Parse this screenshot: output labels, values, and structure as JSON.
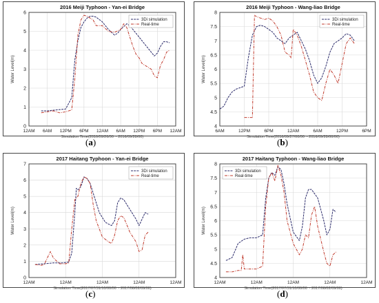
{
  "colors": {
    "sim": "#2a2a6a",
    "real": "#c0392b",
    "grid": "#d8d8d8",
    "axis": "#333333"
  },
  "chart_data": [
    {
      "id": "a",
      "type": "line",
      "caption": "a",
      "title": "2016 Meiji Typhoon - Yan-ei Bridge",
      "ylabel": "Water Level(m)",
      "xlabel": "Simulation Time(2016/09/26/00 ~ 2016/09/28/00)",
      "ylim": [
        0,
        6
      ],
      "yticks": [
        0,
        1,
        2,
        3,
        4,
        5,
        6
      ],
      "xlim": [
        0,
        48
      ],
      "xticks": [
        0,
        6,
        12,
        18,
        24,
        30,
        36,
        42,
        48
      ],
      "xticklabels": [
        "12AM",
        "6AM",
        "12PM",
        "6PM",
        "12AM",
        "6AM",
        "12PM",
        "6PM",
        "12AM"
      ],
      "legend": {
        "placement": "top-right"
      },
      "grid": true,
      "series": [
        {
          "name": "3Di simulation",
          "key": "sim",
          "x": [
            4,
            6,
            9,
            12,
            14,
            15,
            16,
            17,
            18,
            19,
            20,
            21,
            22,
            24,
            26,
            27,
            28,
            29,
            30,
            32,
            33,
            34,
            36,
            38,
            40,
            41,
            42,
            43,
            44,
            45,
            46
          ],
          "y": [
            0.8,
            0.8,
            0.85,
            0.9,
            1.5,
            3.5,
            4.5,
            5.2,
            5.5,
            5.7,
            5.8,
            5.8,
            5.75,
            5.5,
            5.1,
            4.95,
            4.8,
            4.9,
            5.1,
            5.4,
            5.3,
            5.1,
            4.7,
            4.3,
            3.9,
            3.7,
            3.85,
            4.2,
            4.45,
            4.45,
            4.4
          ]
        },
        {
          "name": "Real-time",
          "key": "real",
          "x": [
            4,
            6,
            8,
            10,
            12,
            14,
            15,
            16,
            17,
            18,
            19,
            20,
            21,
            22,
            24,
            26,
            28,
            30,
            31,
            32,
            33,
            34,
            35,
            36,
            37,
            38,
            40,
            41,
            42,
            43,
            44,
            45,
            46
          ],
          "y": [
            0.7,
            0.75,
            0.8,
            0.7,
            0.75,
            0.85,
            2.5,
            4.8,
            5.6,
            5.85,
            5.8,
            5.7,
            5.6,
            5.3,
            5.3,
            5.0,
            4.95,
            5.1,
            5.4,
            5.2,
            4.7,
            4.2,
            3.8,
            3.6,
            3.3,
            3.2,
            3.0,
            2.65,
            2.55,
            3.2,
            3.5,
            3.9,
            4.0
          ]
        }
      ]
    },
    {
      "id": "b",
      "type": "line",
      "caption": "b",
      "title": "2016 Meiji Typhoon - Wang-liao Bridge",
      "ylabel": "Water Level(m)",
      "xlabel": "Simulation Time(2016/09/27/00/00 ~ 2016/09/28/00/00)",
      "ylim": [
        4,
        8
      ],
      "yticks": [
        4,
        4.5,
        5,
        5.5,
        6,
        6.5,
        7,
        7.5,
        8
      ],
      "xlim": [
        0,
        36
      ],
      "xticks": [
        0,
        6,
        12,
        18,
        24,
        30,
        36
      ],
      "xticklabels": [
        "6AM",
        "12PM",
        "6PM",
        "12AM",
        "6AM",
        "12PM",
        "6PM"
      ],
      "xticks_label_override": true,
      "legend": {
        "placement": "top-right"
      },
      "grid": true,
      "series": [
        {
          "name": "3Di simulation",
          "key": "sim",
          "x": [
            0,
            1,
            2,
            3,
            4,
            6,
            7,
            8,
            9,
            10,
            11,
            12,
            13,
            14,
            16,
            17,
            18,
            19,
            20,
            21,
            22,
            23,
            24,
            25,
            26,
            27,
            28,
            29,
            30,
            31,
            32,
            33
          ],
          "y": [
            4.6,
            4.7,
            5.0,
            5.2,
            5.3,
            5.4,
            6.4,
            7.2,
            7.5,
            7.55,
            7.5,
            7.4,
            7.3,
            7.1,
            6.9,
            7.1,
            7.2,
            7.3,
            7.0,
            6.7,
            6.3,
            5.8,
            5.5,
            5.7,
            6.1,
            6.6,
            6.9,
            7.0,
            7.1,
            7.25,
            7.2,
            7.0
          ]
        },
        {
          "name": "Real-time",
          "key": "real",
          "x": [
            6,
            7,
            8,
            8.5,
            9,
            10,
            11,
            12,
            13,
            14,
            15,
            16,
            17,
            17.5,
            18,
            19,
            20,
            21,
            22,
            23,
            24,
            25,
            26,
            27,
            28,
            29,
            30,
            31,
            32,
            33
          ],
          "y": [
            4.3,
            4.3,
            4.3,
            7.9,
            7.85,
            7.8,
            7.75,
            7.8,
            7.7,
            7.5,
            7.2,
            6.6,
            6.5,
            6.4,
            7.4,
            7.2,
            6.8,
            6.3,
            5.8,
            5.2,
            5.0,
            4.9,
            5.5,
            6.0,
            5.8,
            5.5,
            6.2,
            6.9,
            7.1,
            6.9
          ]
        }
      ]
    },
    {
      "id": "c",
      "type": "line",
      "caption": "c",
      "title": "2017 Haitang Typhoon - Yan-ei Bridge",
      "ylabel": "Water Level(m)",
      "xlabel": "Simulation Time(2017/07/31/10/00/00 ~ 2017/08/02/09/00)",
      "ylim": [
        0,
        7
      ],
      "yticks": [
        0,
        1,
        2,
        3,
        4,
        5,
        6,
        7
      ],
      "xlim": [
        0,
        48
      ],
      "xticks": [
        0,
        12,
        24,
        36,
        48
      ],
      "xticklabels": [
        "12AM",
        "12AM",
        "12AM",
        "12AM",
        "12AM"
      ],
      "legend": {
        "placement": "top-right"
      },
      "grid": true,
      "series": [
        {
          "name": "3Di simulation",
          "key": "sim",
          "x": [
            2,
            5,
            8,
            11,
            13,
            14,
            15,
            15.5,
            16,
            17,
            18,
            19,
            20,
            21,
            23,
            25,
            27,
            28,
            29,
            30,
            31,
            33,
            35,
            36,
            37,
            38,
            39
          ],
          "y": [
            0.8,
            0.85,
            0.9,
            0.9,
            0.95,
            1.5,
            4.0,
            5.5,
            5.4,
            5.6,
            6.2,
            6.1,
            5.8,
            5.2,
            4.0,
            3.4,
            3.2,
            3.5,
            4.6,
            4.9,
            4.8,
            4.2,
            3.6,
            3.2,
            3.6,
            4.0,
            3.9
          ]
        },
        {
          "name": "Real-time",
          "key": "real",
          "x": [
            2,
            4,
            5,
            6,
            7,
            8,
            10,
            12,
            13,
            14,
            15,
            16,
            17,
            18,
            19,
            20,
            21,
            22,
            24,
            26,
            27,
            28,
            29,
            30,
            31,
            33,
            35,
            36,
            37,
            38,
            39
          ],
          "y": [
            0.8,
            0.75,
            0.8,
            1.2,
            1.6,
            1.2,
            0.85,
            0.85,
            0.9,
            3.0,
            4.8,
            5.0,
            5.8,
            6.2,
            6.1,
            5.8,
            4.5,
            3.5,
            2.5,
            2.2,
            2.1,
            2.6,
            3.5,
            3.8,
            3.7,
            2.8,
            2.2,
            1.6,
            1.7,
            2.6,
            2.8
          ]
        }
      ]
    },
    {
      "id": "d",
      "type": "line",
      "caption": "d",
      "title": "2017 Haitang Typhoon - Wang-liao Bridge",
      "ylabel": "Water Level(m)",
      "xlabel": "Simulation Time(2017/07/31/10/00/00 ~ 2017/08/02/09/00)",
      "ylim": [
        4,
        8
      ],
      "yticks": [
        4,
        4.5,
        5,
        5.5,
        6,
        6.5,
        7,
        7.5,
        8
      ],
      "xlim": [
        0,
        48
      ],
      "xticks": [
        0,
        12,
        24,
        36,
        48
      ],
      "xticklabels": [
        "12AM",
        "12AM",
        "12AM",
        "12AM",
        "12AM"
      ],
      "legend": {
        "placement": "top-left"
      },
      "grid": true,
      "series": [
        {
          "name": "3Di simulation",
          "key": "sim",
          "x": [
            2,
            4,
            6,
            8,
            10,
            12,
            14,
            15,
            16,
            17,
            18,
            19,
            20,
            21,
            22,
            24,
            26,
            27,
            28,
            29,
            30,
            32,
            34,
            35,
            36,
            37,
            38
          ],
          "y": [
            4.6,
            4.7,
            5.2,
            5.35,
            5.4,
            5.4,
            5.5,
            6.8,
            7.5,
            7.7,
            7.6,
            7.9,
            7.8,
            7.3,
            6.6,
            5.6,
            5.3,
            5.8,
            6.8,
            7.1,
            7.1,
            6.8,
            6.0,
            5.5,
            5.7,
            6.4,
            6.3
          ]
        },
        {
          "name": "Real-time",
          "key": "real",
          "x": [
            2,
            4,
            6,
            7,
            7.5,
            8,
            10,
            12,
            14,
            15,
            16,
            17,
            18,
            19,
            20,
            21,
            22,
            24,
            26,
            27,
            28,
            29,
            30,
            31,
            32,
            34,
            35,
            36,
            37,
            38
          ],
          "y": [
            4.2,
            4.2,
            4.25,
            4.25,
            4.8,
            4.3,
            4.3,
            4.3,
            4.4,
            6.5,
            7.5,
            7.7,
            7.4,
            7.95,
            7.6,
            7.0,
            6.0,
            5.2,
            4.8,
            5.0,
            5.5,
            5.4,
            6.2,
            6.5,
            5.8,
            4.9,
            4.5,
            4.4,
            4.8,
            4.9
          ]
        }
      ]
    }
  ]
}
